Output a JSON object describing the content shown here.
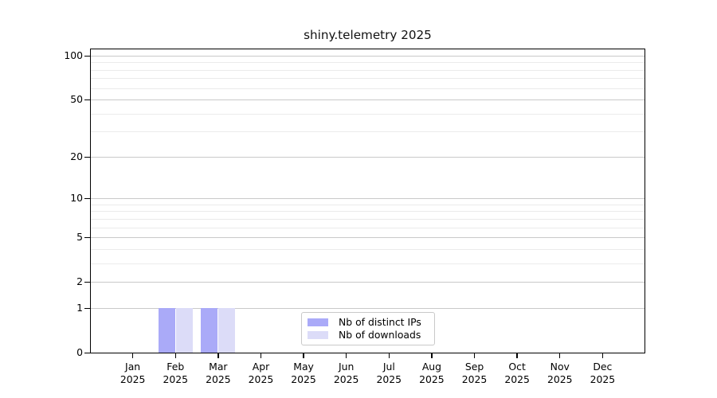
{
  "chart_data": {
    "type": "bar",
    "title": "shiny.telemetry 2025",
    "x_axis": {
      "months": [
        "Jan",
        "Feb",
        "Mar",
        "Apr",
        "May",
        "Jun",
        "Jul",
        "Aug",
        "Sep",
        "Oct",
        "Nov",
        "Dec"
      ],
      "year": "2025"
    },
    "series": [
      {
        "name": "Nb of distinct IPs",
        "color": "#aaaaf8",
        "values": [
          0,
          1,
          1,
          0,
          0,
          0,
          0,
          0,
          0,
          0,
          0,
          0
        ]
      },
      {
        "name": "Nb of downloads",
        "color": "#dcdcf8",
        "values": [
          0,
          1,
          1,
          0,
          0,
          0,
          0,
          0,
          0,
          0,
          0,
          0
        ]
      }
    ],
    "y_axis": {
      "scale": "log1p",
      "major_ticks": [
        0,
        1,
        2,
        5,
        10,
        20,
        50,
        100
      ],
      "minor_gridlines": [
        3,
        4,
        6,
        7,
        8,
        9,
        30,
        40,
        60,
        70,
        80,
        90
      ],
      "max": 113
    },
    "legend": {
      "position": "lower center"
    },
    "grid": {
      "orientation": "horizontal",
      "major_color": "#c9c9c9",
      "minor_color": "#ebebeb"
    },
    "background": "#ffffff"
  }
}
